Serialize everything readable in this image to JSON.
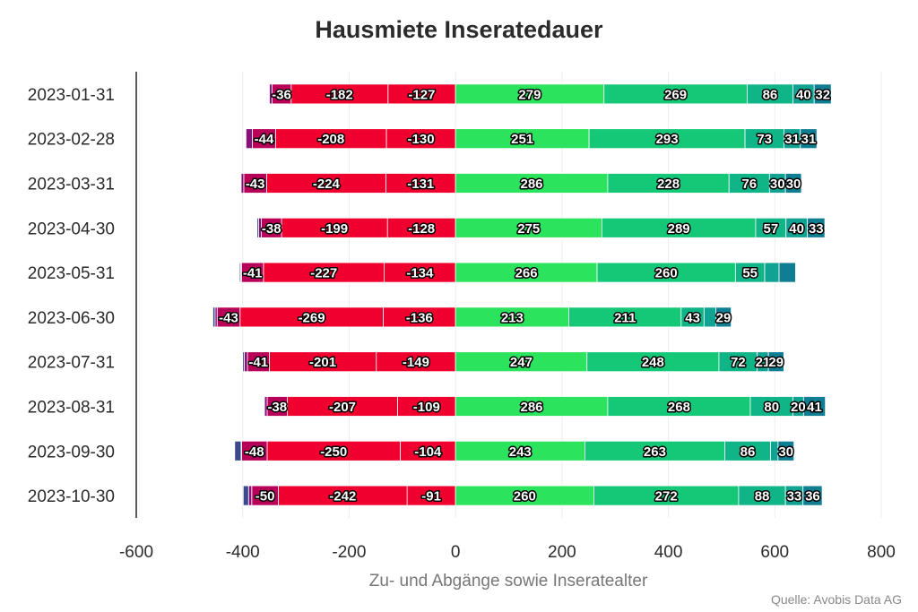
{
  "chart_data": {
    "type": "bar",
    "orientation": "horizontal",
    "stacked": true,
    "title": "Hausmiete Inseratedauer",
    "xlabel": "Zu- und Abgänge sowie Inseratealter",
    "ylabel": "",
    "source": "Quelle: Avobis Data AG",
    "xlim": [
      -600,
      800
    ],
    "xticks": [
      -600,
      -400,
      -200,
      0,
      200,
      400,
      600,
      800
    ],
    "grid": true,
    "legend": "none",
    "categories": [
      "2023-01-31",
      "2023-02-28",
      "2023-03-31",
      "2023-04-30",
      "2023-05-31",
      "2023-06-30",
      "2023-07-31",
      "2023-08-31",
      "2023-09-30",
      "2023-10-30"
    ],
    "negative_series": [
      {
        "color": "#f0002e",
        "values": [
          -127,
          -130,
          -131,
          -128,
          -134,
          -136,
          -149,
          -109,
          -104,
          -91
        ]
      },
      {
        "color": "#f0002e",
        "values": [
          -182,
          -208,
          -224,
          -199,
          -227,
          -269,
          -201,
          -207,
          -250,
          -242
        ]
      },
      {
        "color": "#b80058",
        "values": [
          -36,
          -44,
          -43,
          -38,
          -41,
          -43,
          -41,
          -38,
          -48,
          -50
        ]
      },
      {
        "color": "#8a0f7a",
        "values": [
          -5,
          -12,
          -5,
          -5,
          -2,
          -4,
          -6,
          -5,
          -1,
          -6
        ]
      },
      {
        "color": "#3a4a8c",
        "values": [
          -1,
          -1,
          -1,
          -3,
          -2,
          -4,
          -3,
          -1,
          -12,
          -10
        ]
      }
    ],
    "positive_series": [
      {
        "color": "#2be35c",
        "values": [
          279,
          251,
          286,
          275,
          266,
          213,
          247,
          286,
          243,
          260
        ]
      },
      {
        "color": "#14c878",
        "values": [
          269,
          293,
          228,
          289,
          260,
          211,
          248,
          268,
          263,
          272
        ]
      },
      {
        "color": "#0fb587",
        "values": [
          86,
          73,
          76,
          57,
          55,
          43,
          72,
          80,
          86,
          88
        ]
      },
      {
        "color": "#11a391",
        "values": [
          40,
          31,
          30,
          40,
          27,
          22,
          21,
          20,
          14,
          33
        ]
      },
      {
        "color": "#0f7e92",
        "values": [
          32,
          31,
          30,
          33,
          31,
          29,
          29,
          41,
          30,
          36
        ]
      }
    ],
    "hidden_labels": {
      "positive_series": [
        [],
        [],
        [],
        [],
        [
          4,
          3
        ],
        [
          5,
          3
        ],
        [],
        [],
        [
          8,
          3
        ],
        []
      ]
    }
  }
}
